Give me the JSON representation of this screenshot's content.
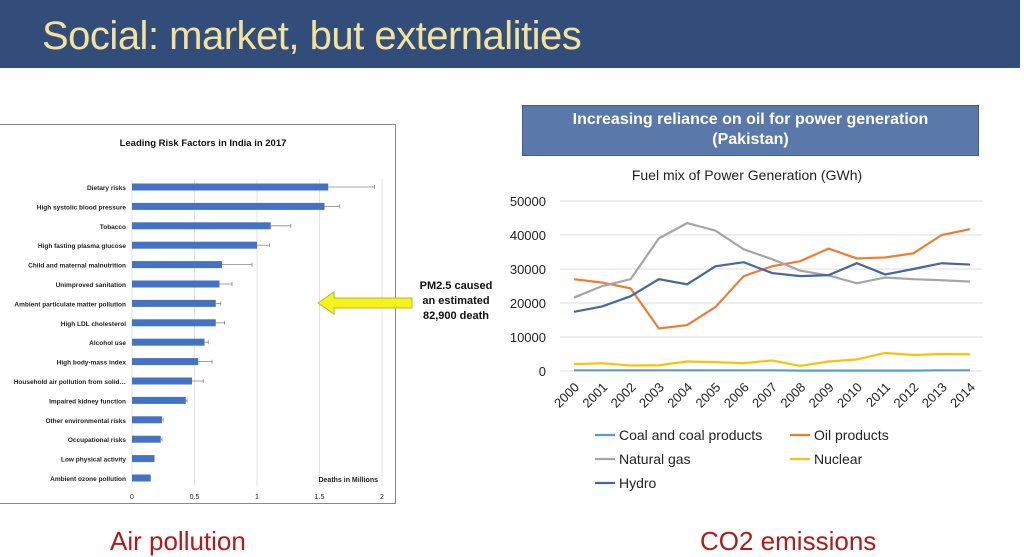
{
  "slide": {
    "title": "Social: market, but externalities",
    "left_caption": "Air pollution",
    "right_caption": "CO2 emissions",
    "callout": [
      "PM2.5 caused",
      "an estimated",
      "82,900 death"
    ],
    "banner": [
      "Increasing reliance on oil for power generation",
      "(Pakistan)"
    ]
  },
  "chart_data": [
    {
      "type": "bar",
      "orientation": "horizontal",
      "title": "Leading Risk Factors in India in 2017",
      "xlabel": "Deaths in Millions",
      "xlim": [
        0,
        2
      ],
      "xticks": [
        "0",
        "0.5",
        "1",
        "1.5",
        "2"
      ],
      "color": "#4472c4",
      "grid": true,
      "categories": [
        "Dietary risks",
        "High systolic blood pressure",
        "Tobacco",
        "High fasting plasma glucose",
        "Child and maternal malnutrition",
        "Unimproved sanitation",
        "Ambient particulate matter pollution",
        "High LDL cholesterol",
        "Alcohol use",
        "High body-mass index",
        "Household air pollution from solid…",
        "Impaired kidney function",
        "Other environmental risks",
        "Occupational risks",
        "Low physical activity",
        "Ambient ozone pollution"
      ],
      "values": [
        1.57,
        1.54,
        1.11,
        1.0,
        0.72,
        0.7,
        0.67,
        0.67,
        0.58,
        0.53,
        0.48,
        0.43,
        0.24,
        0.23,
        0.18,
        0.15
      ],
      "error_upper": [
        1.94,
        1.66,
        1.27,
        1.1,
        0.96,
        0.8,
        0.71,
        0.74,
        0.61,
        0.64,
        0.57,
        0.44,
        0.25,
        0.24,
        0.18,
        0.15
      ]
    },
    {
      "type": "line",
      "title": "Fuel mix of Power Generation (GWh)",
      "ylim": [
        0,
        50000
      ],
      "yticks": [
        "0",
        "10000",
        "20000",
        "30000",
        "40000",
        "50000"
      ],
      "grid": true,
      "legend": "bottom",
      "x": [
        "2000",
        "2001",
        "2002",
        "2003",
        "2004",
        "2005",
        "2006",
        "2007",
        "2008",
        "2009",
        "2010",
        "2011",
        "2012",
        "2013",
        "2014"
      ],
      "series": [
        {
          "name": "Coal and coal products",
          "color": "#5b9bd5",
          "values": [
            200,
            200,
            200,
            200,
            200,
            200,
            200,
            200,
            100,
            100,
            100,
            100,
            100,
            200,
            200
          ]
        },
        {
          "name": "Oil products",
          "color": "#ed7d31",
          "values": [
            27000,
            26000,
            24300,
            12500,
            13500,
            18800,
            27900,
            30800,
            32300,
            36000,
            33100,
            33400,
            34600,
            40000,
            41700
          ]
        },
        {
          "name": "Natural gas",
          "color": "#a5a5a5",
          "values": [
            21600,
            25000,
            27000,
            39000,
            43500,
            41300,
            35800,
            32900,
            29500,
            28100,
            25800,
            27500,
            27000,
            26700,
            26300
          ]
        },
        {
          "name": "Nuclear",
          "color": "#ffc000",
          "values": [
            2000,
            2300,
            1600,
            1700,
            2800,
            2600,
            2300,
            3100,
            1500,
            2800,
            3400,
            5300,
            4700,
            5000,
            4900
          ]
        },
        {
          "name": "Hydro",
          "color": "#44679f",
          "values": [
            17400,
            19000,
            22000,
            27000,
            25500,
            30800,
            32000,
            28800,
            27900,
            28200,
            31700,
            28400,
            30000,
            31700,
            31300
          ]
        }
      ]
    }
  ]
}
